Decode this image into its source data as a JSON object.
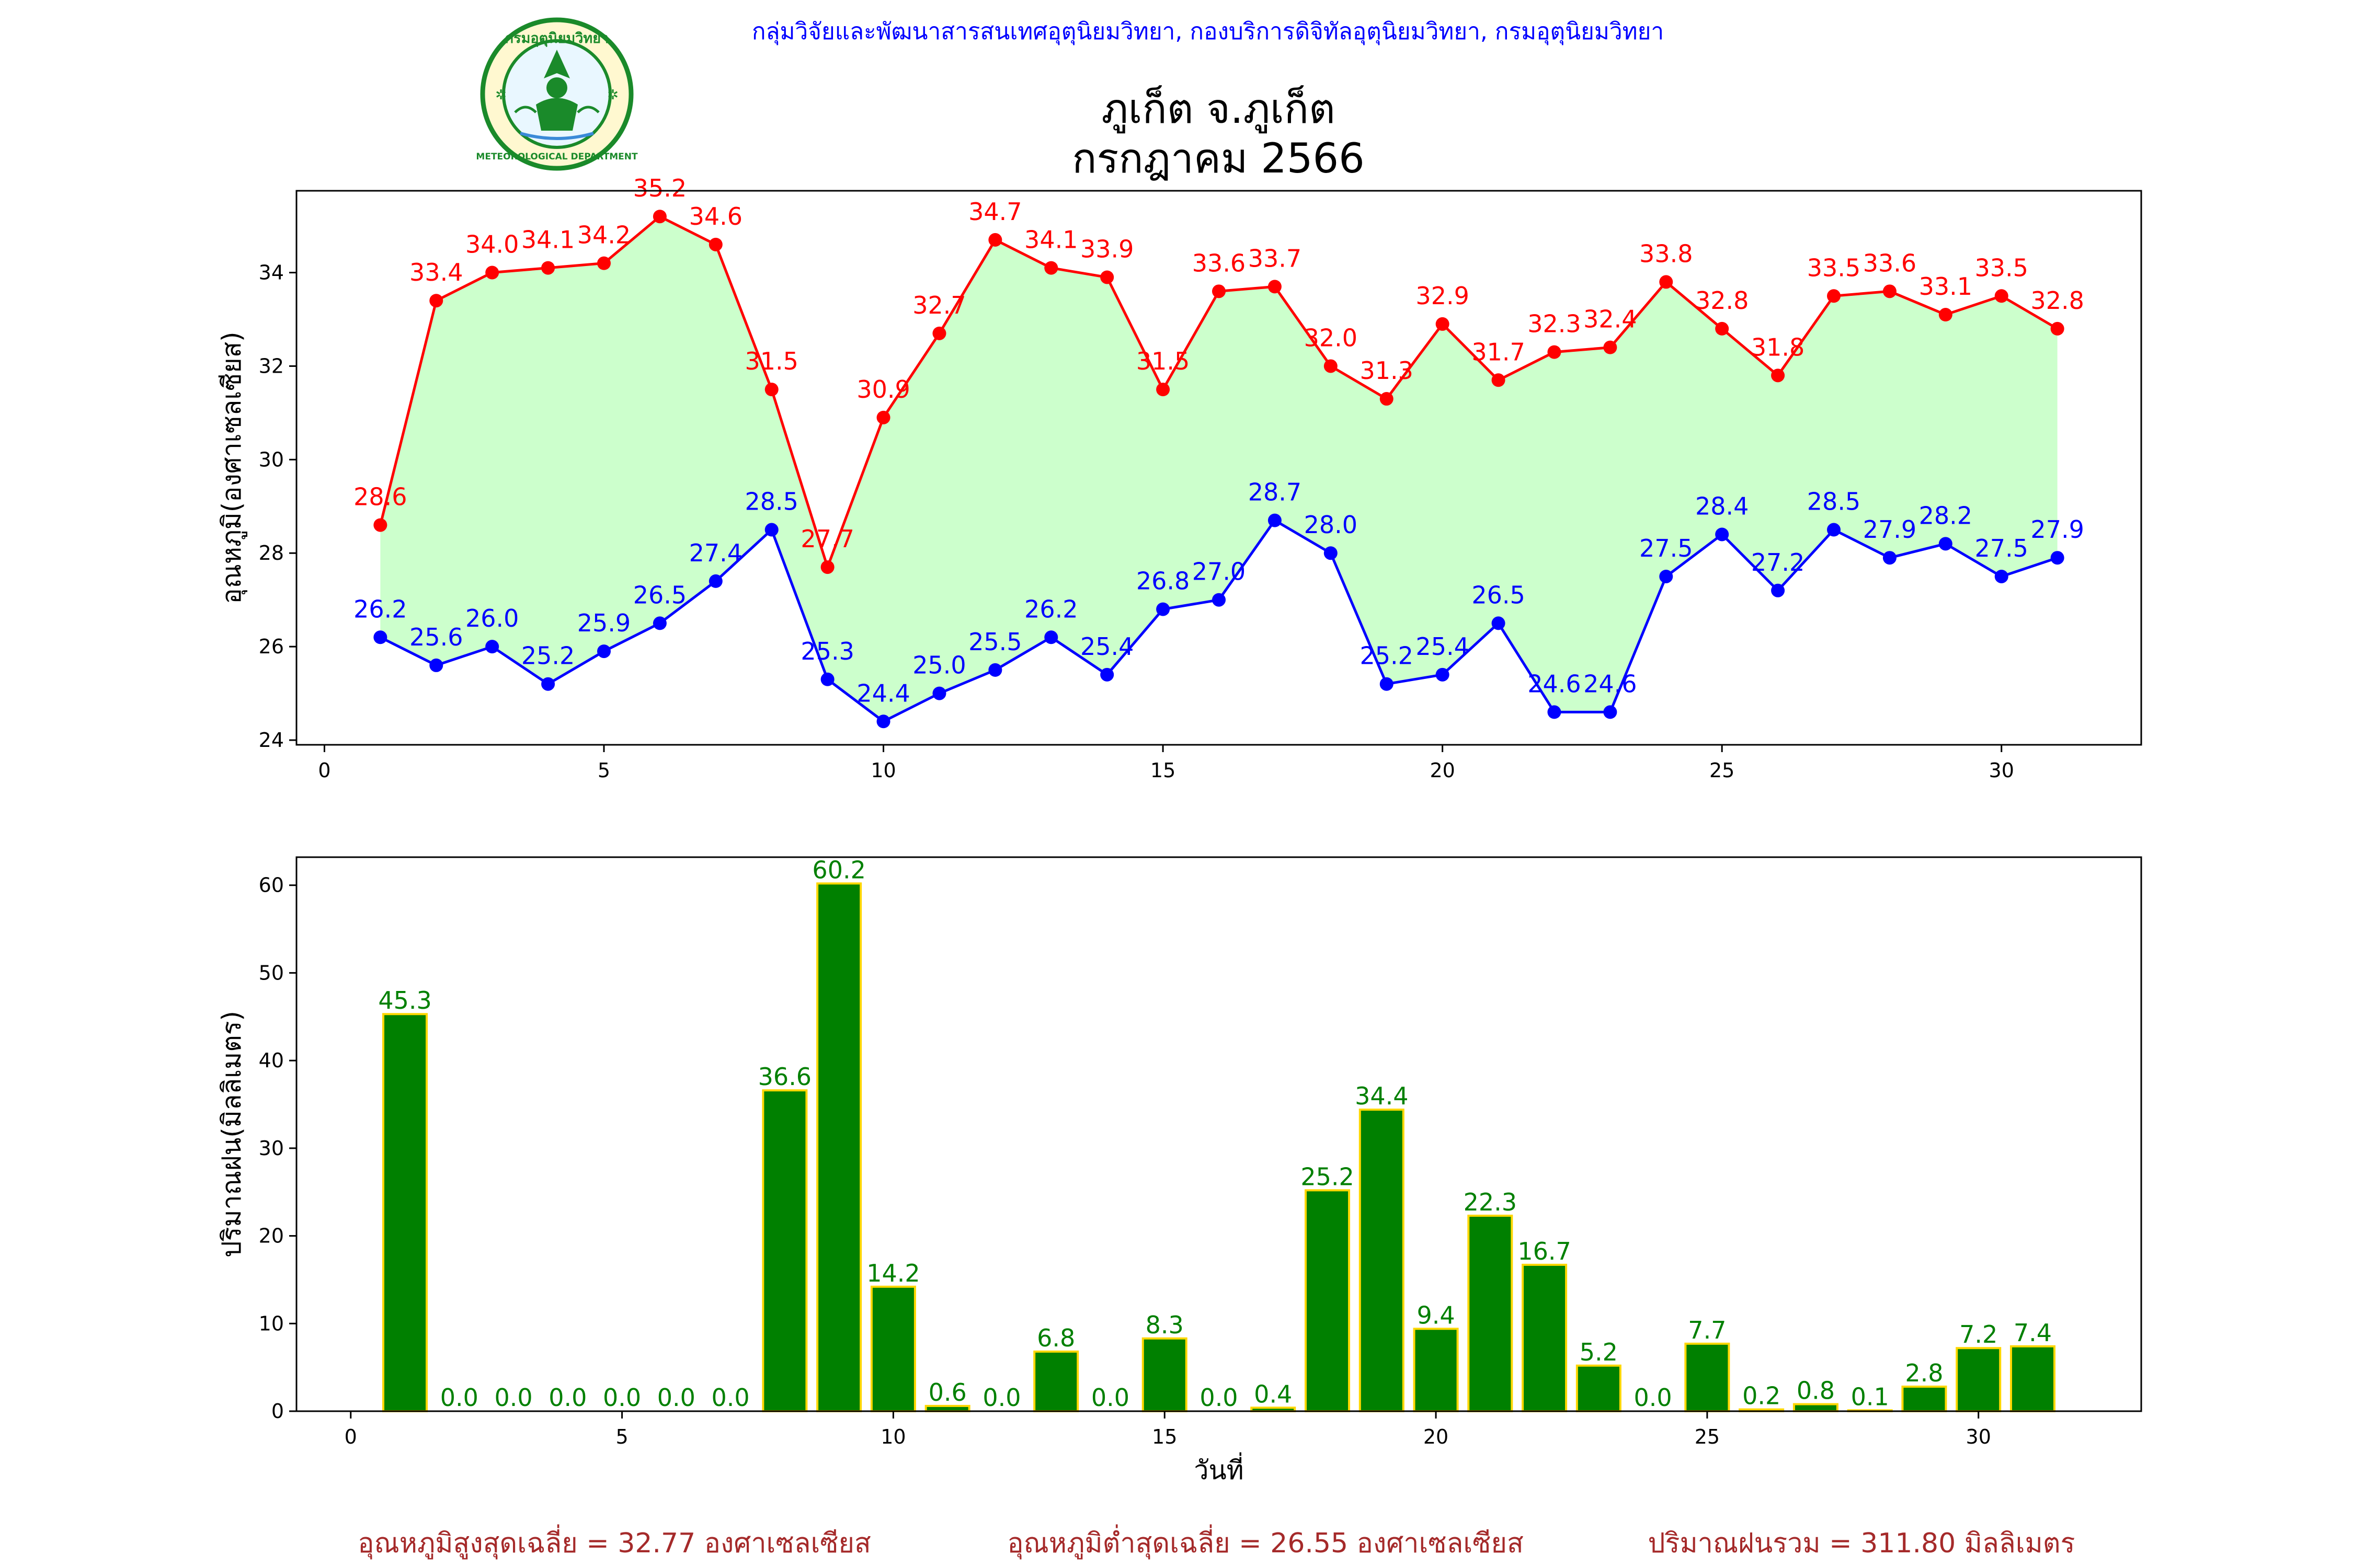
{
  "header": {
    "org_line": "กลุ่มวิจัยและพัฒนาสารสนเทศอุตุนิยมวิทยา, กองบริการดิจิทัลอุตุนิยมวิทยา, กรมอุตุนิยมวิทยา",
    "title_line1": "ภูเก็ต จ.ภูเก็ต",
    "title_line2": "กรกฎาคม 2566",
    "logo": {
      "icon": "meteorological-department-seal-icon",
      "top_text": "กรมอุตุนิยมวิทยา",
      "bottom_text": "METEOROLOGICAL DEPARTMENT"
    }
  },
  "colors": {
    "tmax": "#ff0000",
    "tmin": "#0000ff",
    "fill": "#ccffcc",
    "rain_bar": "#008000",
    "rain_edge": "#ffd700",
    "rain_label": "#008000",
    "org_line": "#0000ff",
    "footer": "#a52a2a",
    "logo_green": "#1a8a2a"
  },
  "chart_data": [
    {
      "type": "line",
      "x": [
        1,
        2,
        3,
        4,
        5,
        6,
        7,
        8,
        9,
        10,
        11,
        12,
        13,
        14,
        15,
        16,
        17,
        18,
        19,
        20,
        21,
        22,
        23,
        24,
        25,
        26,
        27,
        28,
        29,
        30,
        31
      ],
      "series": [
        {
          "key": "tmax",
          "values": [
            28.6,
            33.4,
            34.0,
            34.1,
            34.2,
            35.2,
            34.6,
            31.5,
            27.7,
            30.9,
            32.7,
            34.7,
            34.1,
            33.9,
            31.5,
            33.6,
            33.7,
            32.0,
            31.3,
            32.9,
            31.7,
            32.3,
            32.4,
            33.8,
            32.8,
            31.8,
            33.5,
            33.6,
            33.1,
            33.5,
            32.8
          ]
        },
        {
          "key": "tmin",
          "values": [
            26.2,
            25.6,
            26.0,
            25.2,
            25.9,
            26.5,
            27.4,
            28.5,
            25.3,
            24.4,
            25.0,
            25.5,
            26.2,
            25.4,
            26.8,
            27.0,
            28.7,
            28.0,
            25.2,
            25.4,
            26.5,
            24.6,
            24.6,
            27.5,
            28.4,
            27.2,
            28.5,
            27.9,
            28.2,
            27.5,
            27.9
          ]
        }
      ],
      "ylabel": "อุณหภูมิ(องศาเซลเซียส)",
      "xlim": [
        -0.5,
        32.5
      ],
      "ylim": [
        23.9,
        35.75
      ],
      "xticks": [
        0,
        5,
        10,
        15,
        20,
        25,
        30
      ],
      "yticks": [
        24,
        26,
        28,
        30,
        32,
        34
      ],
      "grid": false
    },
    {
      "type": "bar",
      "x": [
        1,
        2,
        3,
        4,
        5,
        6,
        7,
        8,
        9,
        10,
        11,
        12,
        13,
        14,
        15,
        16,
        17,
        18,
        19,
        20,
        21,
        22,
        23,
        24,
        25,
        26,
        27,
        28,
        29,
        30,
        31
      ],
      "values": [
        45.3,
        0.0,
        0.0,
        0.0,
        0.0,
        0.0,
        0.0,
        36.6,
        60.2,
        14.2,
        0.6,
        0.0,
        6.8,
        0.0,
        8.3,
        0.0,
        0.4,
        25.2,
        34.4,
        9.4,
        22.3,
        16.7,
        5.2,
        0.0,
        7.7,
        0.2,
        0.8,
        0.1,
        2.8,
        7.2,
        7.4
      ],
      "ylabel": "ปริมาณฝน(มิลลิเมตร)",
      "xlabel": "วันที่",
      "xlim": [
        -1,
        33
      ],
      "ylim": [
        0,
        63.2
      ],
      "xticks": [
        0,
        5,
        10,
        15,
        20,
        25,
        30
      ],
      "yticks": [
        0,
        10,
        20,
        30,
        40,
        50,
        60
      ],
      "grid": false
    }
  ],
  "footer": {
    "avg_max": "อุณหภูมิสูงสุดเฉลี่ย = 32.77 องศาเซลเซียส",
    "avg_min": "อุณหภูมิต่ำสุดเฉลี่ย = 26.55 องศาเซลเซียส",
    "rain_total": "ปริมาณฝนรวม = 311.80 มิลลิเมตร"
  }
}
